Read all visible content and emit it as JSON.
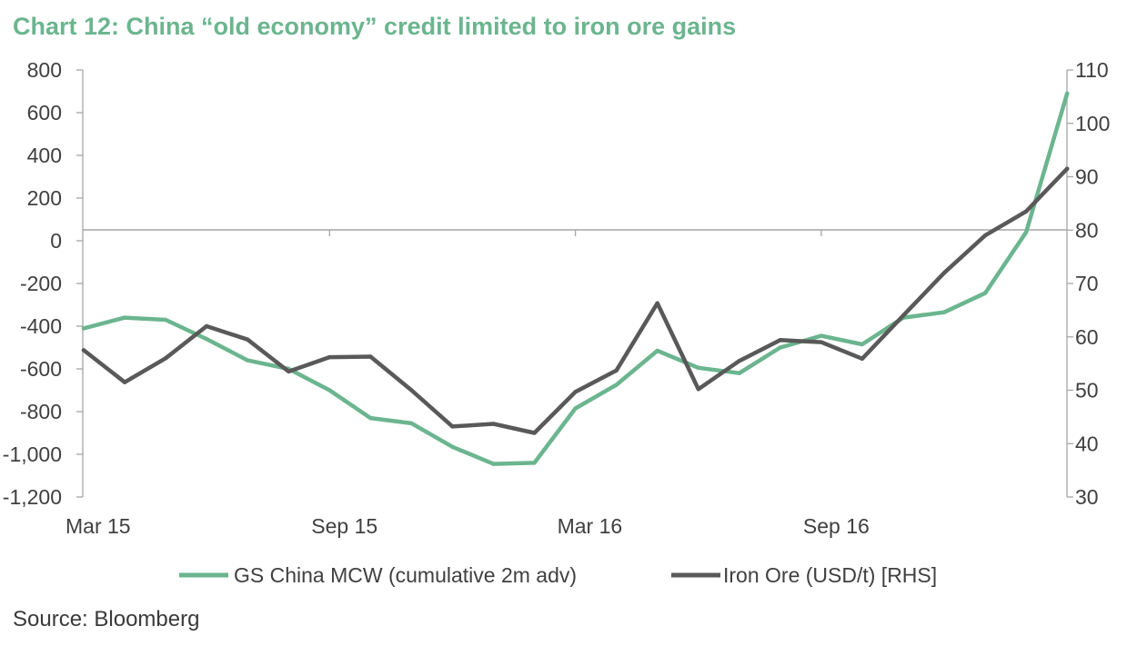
{
  "chart_data": {
    "type": "line",
    "title": "Chart 12: China “old economy” credit limited to iron ore gains",
    "source": "Source: Bloomberg",
    "x_tick_labels": [
      "Mar 15",
      "Sep 15",
      "Mar 16",
      "Sep 16"
    ],
    "x_tick_indices": [
      0,
      6,
      12,
      18
    ],
    "y_left": {
      "ticks": [
        800,
        600,
        400,
        200,
        0,
        -200,
        -400,
        -600,
        -800,
        -1000,
        -1200
      ],
      "tick_labels": [
        "800",
        "600",
        "400",
        "200",
        "0",
        "-200",
        "-400",
        "-600",
        "-800",
        "-1,000",
        "-1,200"
      ],
      "ylim": [
        -1200,
        800
      ]
    },
    "y_right": {
      "ticks": [
        110,
        100,
        90,
        80,
        70,
        60,
        50,
        40,
        30
      ],
      "tick_labels": [
        "110",
        "100",
        "90",
        "80",
        "70",
        "60",
        "50",
        "40",
        "30"
      ],
      "ylim": [
        30,
        110
      ]
    },
    "series": [
      {
        "name": "GS China MCW (cumulative 2m adv)",
        "axis": "left",
        "color": "#6bb58f",
        "values": [
          -410,
          -360,
          -370,
          -460,
          -560,
          -600,
          -700,
          -830,
          -855,
          -965,
          -1045,
          -1040,
          -785,
          -675,
          -515,
          -595,
          -620,
          -500,
          -445,
          -485,
          -360,
          -335,
          -245,
          40,
          690
        ]
      },
      {
        "name": "Iron Ore (USD/t) [RHS]",
        "axis": "right",
        "color": "#595959",
        "values": [
          57.5,
          51.5,
          56,
          62,
          59.5,
          53.5,
          56.2,
          56.3,
          50,
          43.2,
          43.7,
          42,
          49.7,
          53.7,
          66.3,
          50.2,
          55.5,
          59.4,
          59,
          55.9,
          64,
          72,
          79,
          83.5,
          91.5
        ]
      }
    ],
    "legend": [
      {
        "label": "GS China MCW (cumulative 2m adv)",
        "color": "#6bb58f"
      },
      {
        "label": "Iron Ore (USD/t) [RHS]",
        "color": "#595959"
      }
    ]
  }
}
